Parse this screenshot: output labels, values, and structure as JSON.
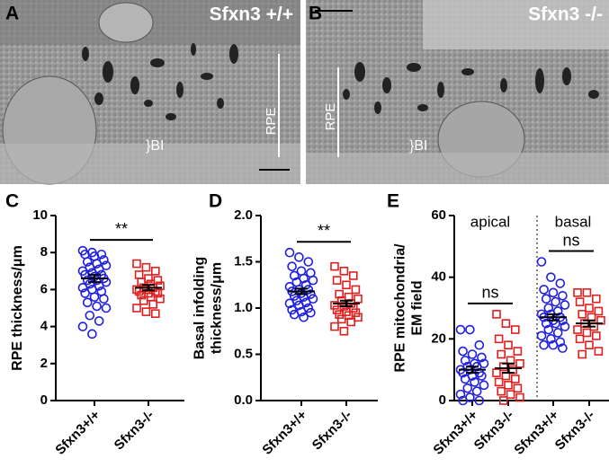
{
  "images": [
    {
      "panel": "A",
      "label": "Sfxn3 +/+",
      "rpe": "RPE",
      "bi": "}BI"
    },
    {
      "panel": "B",
      "label": "Sfxn3 -/-",
      "rpe": "RPE",
      "bi": "}BI"
    }
  ],
  "chart_data": [
    {
      "type": "dot",
      "panel": "C",
      "ylabel": [
        "RPE thickness/μm"
      ],
      "categories": [
        "Sfxn3+/+",
        "Sfxn3-/-"
      ],
      "ylim": [
        0,
        10
      ],
      "yticks": [
        0,
        2,
        4,
        6,
        8,
        10
      ],
      "groups": [
        {
          "color": "#1f1fe0",
          "marker": "circle",
          "mean": 6.6,
          "sem": 0.2,
          "values": [
            8.1,
            8.0,
            7.9,
            7.9,
            7.8,
            7.6,
            7.5,
            7.4,
            7.3,
            7.2,
            7.1,
            7.0,
            6.9,
            6.8,
            6.8,
            6.7,
            6.6,
            6.5,
            6.5,
            6.4,
            6.3,
            6.2,
            6.1,
            6.0,
            5.9,
            5.8,
            5.6,
            5.5,
            5.3,
            5.1,
            5.0,
            4.6,
            4.3,
            4.0,
            3.6
          ]
        },
        {
          "color": "#e01f1f",
          "marker": "square",
          "mean": 6.1,
          "sem": 0.15,
          "values": [
            7.4,
            7.2,
            7.0,
            6.8,
            6.6,
            6.5,
            6.4,
            6.3,
            6.2,
            6.1,
            6.1,
            6.0,
            6.0,
            5.9,
            5.9,
            5.8,
            5.8,
            5.7,
            5.6,
            5.5,
            5.4,
            5.2,
            5.0,
            4.8,
            4.7
          ]
        }
      ],
      "comparisons": [
        {
          "groups": [
            0,
            1
          ],
          "label": "**"
        }
      ]
    },
    {
      "type": "dot",
      "panel": "D",
      "ylabel": [
        "Basal infolding",
        "thickness/μm"
      ],
      "categories": [
        "Sfxn3+/+",
        "Sfxn3-/-"
      ],
      "ylim": [
        0,
        2.0
      ],
      "yticks": [
        {
          "value": 0,
          "label": "0.0"
        },
        0.5,
        {
          "value": 1,
          "label": "1.0"
        },
        1.5,
        {
          "value": 2,
          "label": "2.0"
        }
      ],
      "groups": [
        {
          "color": "#1f1fe0",
          "marker": "circle",
          "mean": 1.18,
          "sem": 0.03,
          "values": [
            1.6,
            1.55,
            1.5,
            1.45,
            1.4,
            1.38,
            1.35,
            1.32,
            1.3,
            1.28,
            1.25,
            1.23,
            1.2,
            1.2,
            1.18,
            1.16,
            1.15,
            1.13,
            1.12,
            1.1,
            1.08,
            1.06,
            1.05,
            1.03,
            1.0,
            0.98,
            0.96,
            0.95,
            0.93,
            0.9
          ]
        },
        {
          "color": "#e01f1f",
          "marker": "square",
          "mean": 1.05,
          "sem": 0.03,
          "values": [
            1.45,
            1.4,
            1.35,
            1.3,
            1.25,
            1.2,
            1.15,
            1.12,
            1.1,
            1.08,
            1.05,
            1.03,
            1.02,
            1.0,
            0.98,
            0.96,
            0.95,
            0.93,
            0.92,
            0.9,
            0.88,
            0.85,
            0.8,
            0.75
          ]
        }
      ],
      "comparisons": [
        {
          "groups": [
            0,
            1
          ],
          "label": "**"
        }
      ]
    },
    {
      "type": "dot",
      "panel": "E",
      "ylabel": [
        "RPE mitochondria/",
        "EM field"
      ],
      "categories": [
        "Sfxn3+/+",
        "Sfxn3-/-",
        "Sfxn3+/+",
        "Sfxn3-/-"
      ],
      "regions": [
        "apical",
        "basal"
      ],
      "ylim": [
        0,
        60
      ],
      "yticks": [
        0,
        20,
        40,
        60
      ],
      "groups": [
        {
          "color": "#1f1fe0",
          "marker": "circle",
          "mean": 10,
          "sem": 1,
          "values": [
            23,
            23,
            18,
            16,
            15,
            14,
            13,
            12,
            12,
            11,
            11,
            10,
            10,
            9,
            9,
            8,
            8,
            7,
            6,
            5,
            4,
            3,
            2,
            1,
            0,
            0
          ]
        },
        {
          "color": "#e01f1f",
          "marker": "square",
          "mean": 10.5,
          "sem": 1.5,
          "values": [
            28,
            25,
            23,
            20,
            18,
            16,
            15,
            13,
            12,
            11,
            10,
            9,
            8,
            7,
            6,
            5,
            4,
            3,
            2,
            1,
            0
          ]
        },
        {
          "color": "#1f1fe0",
          "marker": "circle",
          "mean": 27,
          "sem": 1,
          "values": [
            45,
            40,
            38,
            36,
            35,
            34,
            33,
            32,
            31,
            30,
            29,
            28,
            28,
            27,
            27,
            26,
            26,
            25,
            25,
            24,
            23,
            22,
            21,
            20,
            19,
            18,
            18,
            17
          ]
        },
        {
          "color": "#e01f1f",
          "marker": "square",
          "mean": 25,
          "sem": 1,
          "values": [
            35,
            35,
            33,
            32,
            30,
            29,
            28,
            27,
            26,
            25,
            24,
            23,
            22,
            21,
            20,
            18,
            16,
            15
          ]
        }
      ],
      "comparisons": [
        {
          "groups": [
            0,
            1
          ],
          "label": "ns"
        },
        {
          "groups": [
            2,
            3
          ],
          "label": "ns"
        }
      ]
    }
  ]
}
